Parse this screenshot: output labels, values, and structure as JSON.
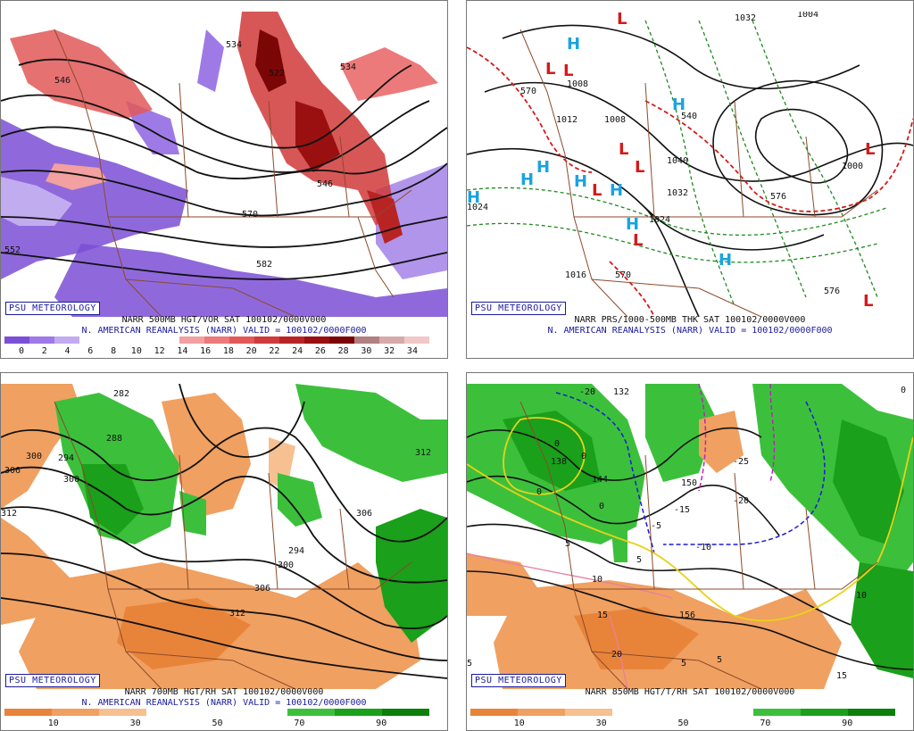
{
  "badge": "PSU METEOROLOGY",
  "panels": {
    "p1": {
      "caption1": "NARR 500MB HGT/VOR SAT 100102/0000V000",
      "caption2": "N. AMERICAN REANALYSIS (NARR) VALID = 100102/0000F000",
      "colorbar": [
        "#7b4fd6",
        "#9e7ae6",
        "#c2acf0",
        "#ffffff",
        "#ffffff",
        "#ffffff",
        "#ffffff",
        "#f2a0a0",
        "#ec7a7a",
        "#e25858",
        "#d03a3a",
        "#b82424",
        "#9a1010",
        "#7a0606",
        "#b08080",
        "#d6aaaa",
        "#f0c8c8"
      ],
      "ticks": [
        "0",
        "2",
        "4",
        "6",
        "8",
        "10",
        "12",
        "14",
        "16",
        "18",
        "20",
        "22",
        "24",
        "26",
        "28",
        "30",
        "32",
        "34"
      ],
      "labels": [
        "534",
        "546",
        "522",
        "534",
        "546",
        "570",
        "582",
        "552"
      ]
    },
    "p2": {
      "caption1": "NARR PRS/1000-500MB THK SAT 100102/0000V000",
      "caption2": "N. AMERICAN REANALYSIS (NARR) VALID = 100102/0000F000",
      "labels": [
        "1032",
        "1004",
        "1008",
        "1012",
        "1040",
        "1032",
        "1024",
        "1016",
        "1024",
        "1000",
        "1008",
        "570",
        "570",
        "576",
        "540",
        "576"
      ]
    },
    "p3": {
      "caption1": "NARR 700MB HGT/RH SAT 100102/0000V000",
      "caption2": "N. AMERICAN REANALYSIS (NARR) VALID = 100102/0000F000",
      "colorbar": [
        "#e8843a",
        "#f0a060",
        "#f6c090",
        "#ffffff",
        "#ffffff",
        "#ffffff",
        "#3cc03c",
        "#1aa01a",
        "#0a800a"
      ],
      "ticks": [
        "10",
        "30",
        "50",
        "70",
        "90"
      ],
      "labels": [
        "282",
        "288",
        "294",
        "300",
        "306",
        "312",
        "294",
        "300",
        "306",
        "312",
        "306",
        "312",
        "300"
      ]
    },
    "p4": {
      "caption1": "NARR 850MB HGT/T/RH SAT 100102/0000V000",
      "colorbar": [
        "#e8843a",
        "#f0a060",
        "#f6c090",
        "#ffffff",
        "#ffffff",
        "#ffffff",
        "#3cc03c",
        "#1aa01a",
        "#0a800a"
      ],
      "ticks": [
        "10",
        "30",
        "50",
        "70",
        "90"
      ],
      "labels": [
        "132",
        "138",
        "144",
        "150",
        "156",
        "-20",
        "-25",
        "-15",
        "-5",
        "-10",
        "-20",
        "0",
        "0",
        "0",
        "5",
        "5",
        "5",
        "5",
        "10",
        "10",
        "15",
        "20",
        "15",
        "5",
        "0",
        "0"
      ]
    }
  }
}
